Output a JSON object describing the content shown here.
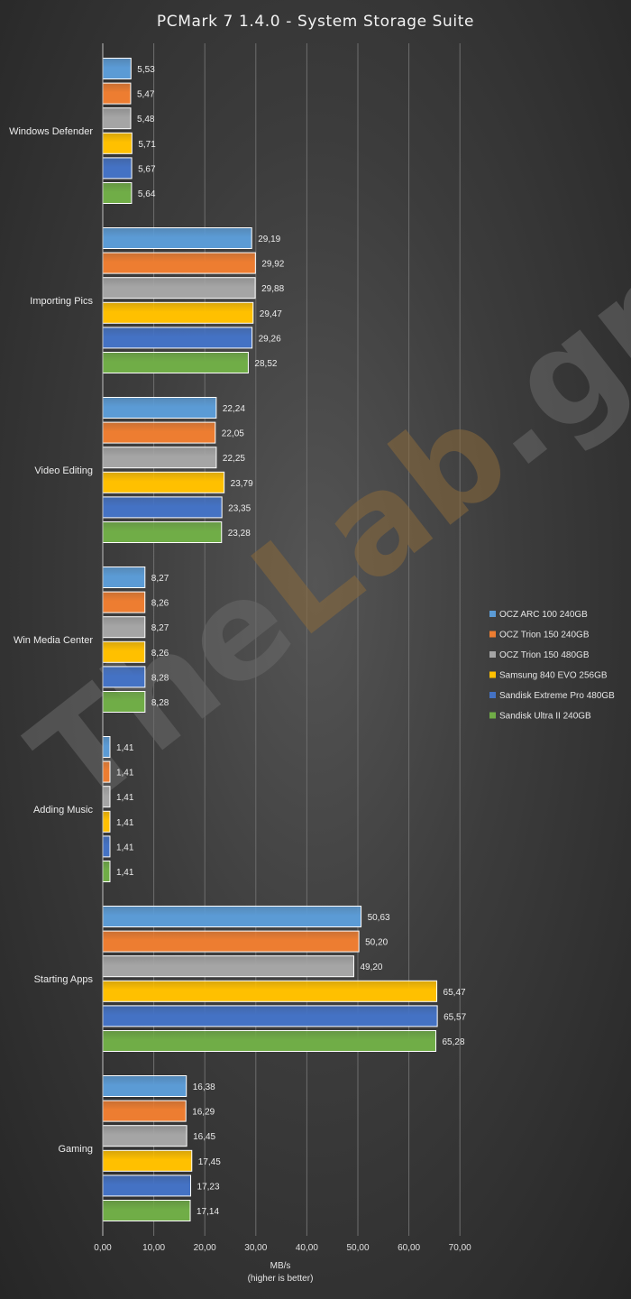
{
  "chart_data": {
    "type": "bar",
    "orientation": "horizontal",
    "title": "PCMark  7 1.4.0 - System Storage Suite",
    "xlabel": "MB/s",
    "xlabel_note": "(higher is better)",
    "xlim": [
      0,
      70
    ],
    "xticks": [
      "0,00",
      "10,00",
      "20,00",
      "30,00",
      "40,00",
      "50,00",
      "60,00",
      "70,00"
    ],
    "grid": "vertical",
    "legend_position": "right",
    "categories": [
      "Windows Defender",
      "Importing Pics",
      "Video Editing",
      "Win Media Center",
      "Adding Music",
      "Starting Apps",
      "Gaming"
    ],
    "series": [
      {
        "name": "OCZ ARC 100 240GB",
        "color": "#5b9bd5",
        "values": [
          5.53,
          29.19,
          22.24,
          8.27,
          1.41,
          50.63,
          16.38
        ],
        "labels": [
          "5,53",
          "29,19",
          "22,24",
          "8,27",
          "1,41",
          "50,63",
          "16,38"
        ]
      },
      {
        "name": "OCZ Trion 150 240GB",
        "color": "#ed7d31",
        "values": [
          5.47,
          29.92,
          22.05,
          8.26,
          1.41,
          50.2,
          16.29
        ],
        "labels": [
          "5,47",
          "29,92",
          "22,05",
          "8,26",
          "1,41",
          "50,20",
          "16,29"
        ]
      },
      {
        "name": "OCZ Trion 150 480GB",
        "color": "#a5a5a5",
        "values": [
          5.48,
          29.88,
          22.25,
          8.27,
          1.41,
          49.2,
          16.45
        ],
        "labels": [
          "5,48",
          "29,88",
          "22,25",
          "8,27",
          "1,41",
          "49,20",
          "16,45"
        ]
      },
      {
        "name": "Samsung 840 EVO 256GB",
        "color": "#ffc000",
        "values": [
          5.71,
          29.47,
          23.79,
          8.26,
          1.41,
          65.47,
          17.45
        ],
        "labels": [
          "5,71",
          "29,47",
          "23,79",
          "8,26",
          "1,41",
          "65,47",
          "17,45"
        ]
      },
      {
        "name": "Sandisk Extreme Pro 480GB",
        "color": "#4472c4",
        "values": [
          5.67,
          29.26,
          23.35,
          8.28,
          1.41,
          65.57,
          17.23
        ],
        "labels": [
          "5,67",
          "29,26",
          "23,35",
          "8,28",
          "1,41",
          "65,57",
          "17,23"
        ]
      },
      {
        "name": "Sandisk Ultra II 240GB",
        "color": "#70ad47",
        "values": [
          5.64,
          28.52,
          23.28,
          8.28,
          1.41,
          65.28,
          17.14
        ],
        "labels": [
          "5,64",
          "28,52",
          "23,28",
          "8,28",
          "1,41",
          "65,28",
          "17,14"
        ]
      }
    ]
  },
  "watermark": {
    "part1": "The",
    "part2": "Lab",
    "part3": ".gr"
  }
}
